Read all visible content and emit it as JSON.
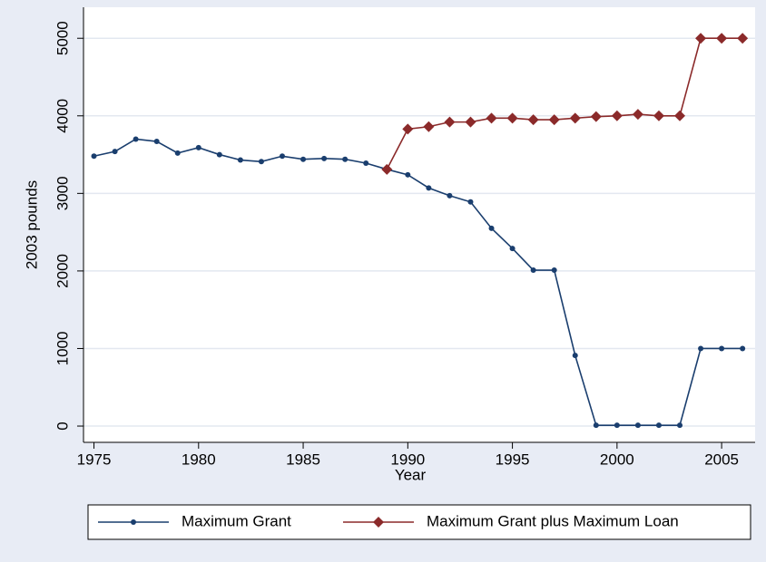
{
  "chart_data": {
    "type": "line",
    "x_label": "Year",
    "y_label": "2003 pounds",
    "x": [
      1975,
      1976,
      1977,
      1978,
      1979,
      1980,
      1981,
      1982,
      1983,
      1984,
      1985,
      1986,
      1987,
      1988,
      1989,
      1990,
      1991,
      1992,
      1993,
      1994,
      1995,
      1996,
      1997,
      1998,
      1999,
      2000,
      2001,
      2002,
      2003,
      2004,
      2005,
      2006
    ],
    "series": [
      {
        "name": "Maximum Grant",
        "color": "#1a3e6e",
        "marker": "circle",
        "values": [
          3480,
          3540,
          3700,
          3670,
          3520,
          3590,
          3500,
          3430,
          3410,
          3480,
          3440,
          3450,
          3440,
          3390,
          3310,
          3240,
          3070,
          2970,
          2890,
          2550,
          2290,
          2010,
          2010,
          910,
          10,
          10,
          10,
          10,
          10,
          1000,
          1000,
          1000
        ]
      },
      {
        "name": "Maximum Grant plus Maximum Loan",
        "color": "#8b2a2a",
        "marker": "diamond",
        "values": [
          null,
          null,
          null,
          null,
          null,
          null,
          null,
          null,
          null,
          null,
          null,
          null,
          null,
          null,
          3310,
          3830,
          3860,
          3920,
          3920,
          3970,
          3970,
          3950,
          3950,
          3970,
          3990,
          4000,
          4020,
          4000,
          4000,
          5000,
          5000,
          5000
        ]
      }
    ],
    "xlim": [
      1974.5,
      2006.6
    ],
    "xticks": [
      1975,
      1980,
      1985,
      1990,
      1995,
      2000,
      2005
    ],
    "ylim": [
      -210,
      5400
    ],
    "yticks": [
      0,
      1000,
      2000,
      3000,
      4000,
      5000
    ],
    "grid": true,
    "legend": "bottom"
  }
}
